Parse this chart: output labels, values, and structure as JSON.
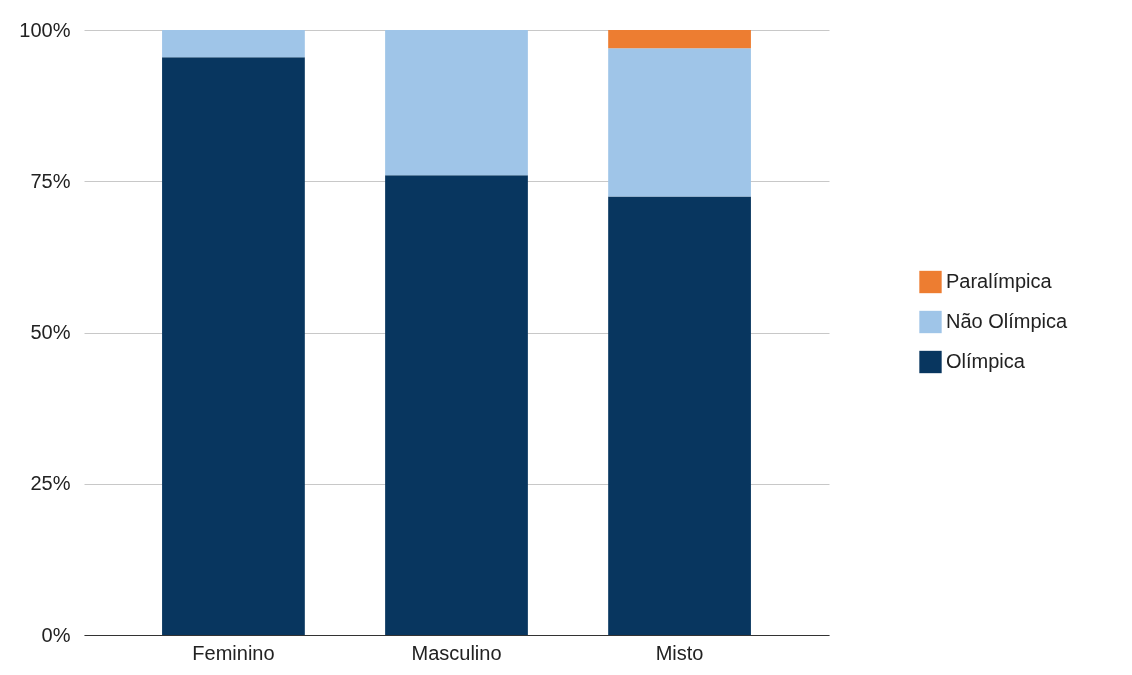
{
  "chart_data": {
    "type": "bar",
    "stacked": true,
    "categories": [
      "Feminino",
      "Masculino",
      "Misto"
    ],
    "series": [
      {
        "name": "Olímpica",
        "color": "#08365f",
        "values": [
          95.5,
          76,
          72.5
        ]
      },
      {
        "name": "Não Olímpica",
        "color": "#9fc5e8",
        "values": [
          4.5,
          24,
          24.5
        ]
      },
      {
        "name": "Paralímpica",
        "color": "#ed7d31",
        "values": [
          0,
          0,
          3
        ]
      }
    ],
    "ylim": [
      0,
      100
    ],
    "yticks": [
      {
        "value": 0,
        "label": "0%"
      },
      {
        "value": 25,
        "label": "25%"
      },
      {
        "value": 50,
        "label": "50%"
      },
      {
        "value": 75,
        "label": "75%"
      },
      {
        "value": 100,
        "label": "100%"
      }
    ],
    "grid": "y",
    "legend": "right"
  }
}
